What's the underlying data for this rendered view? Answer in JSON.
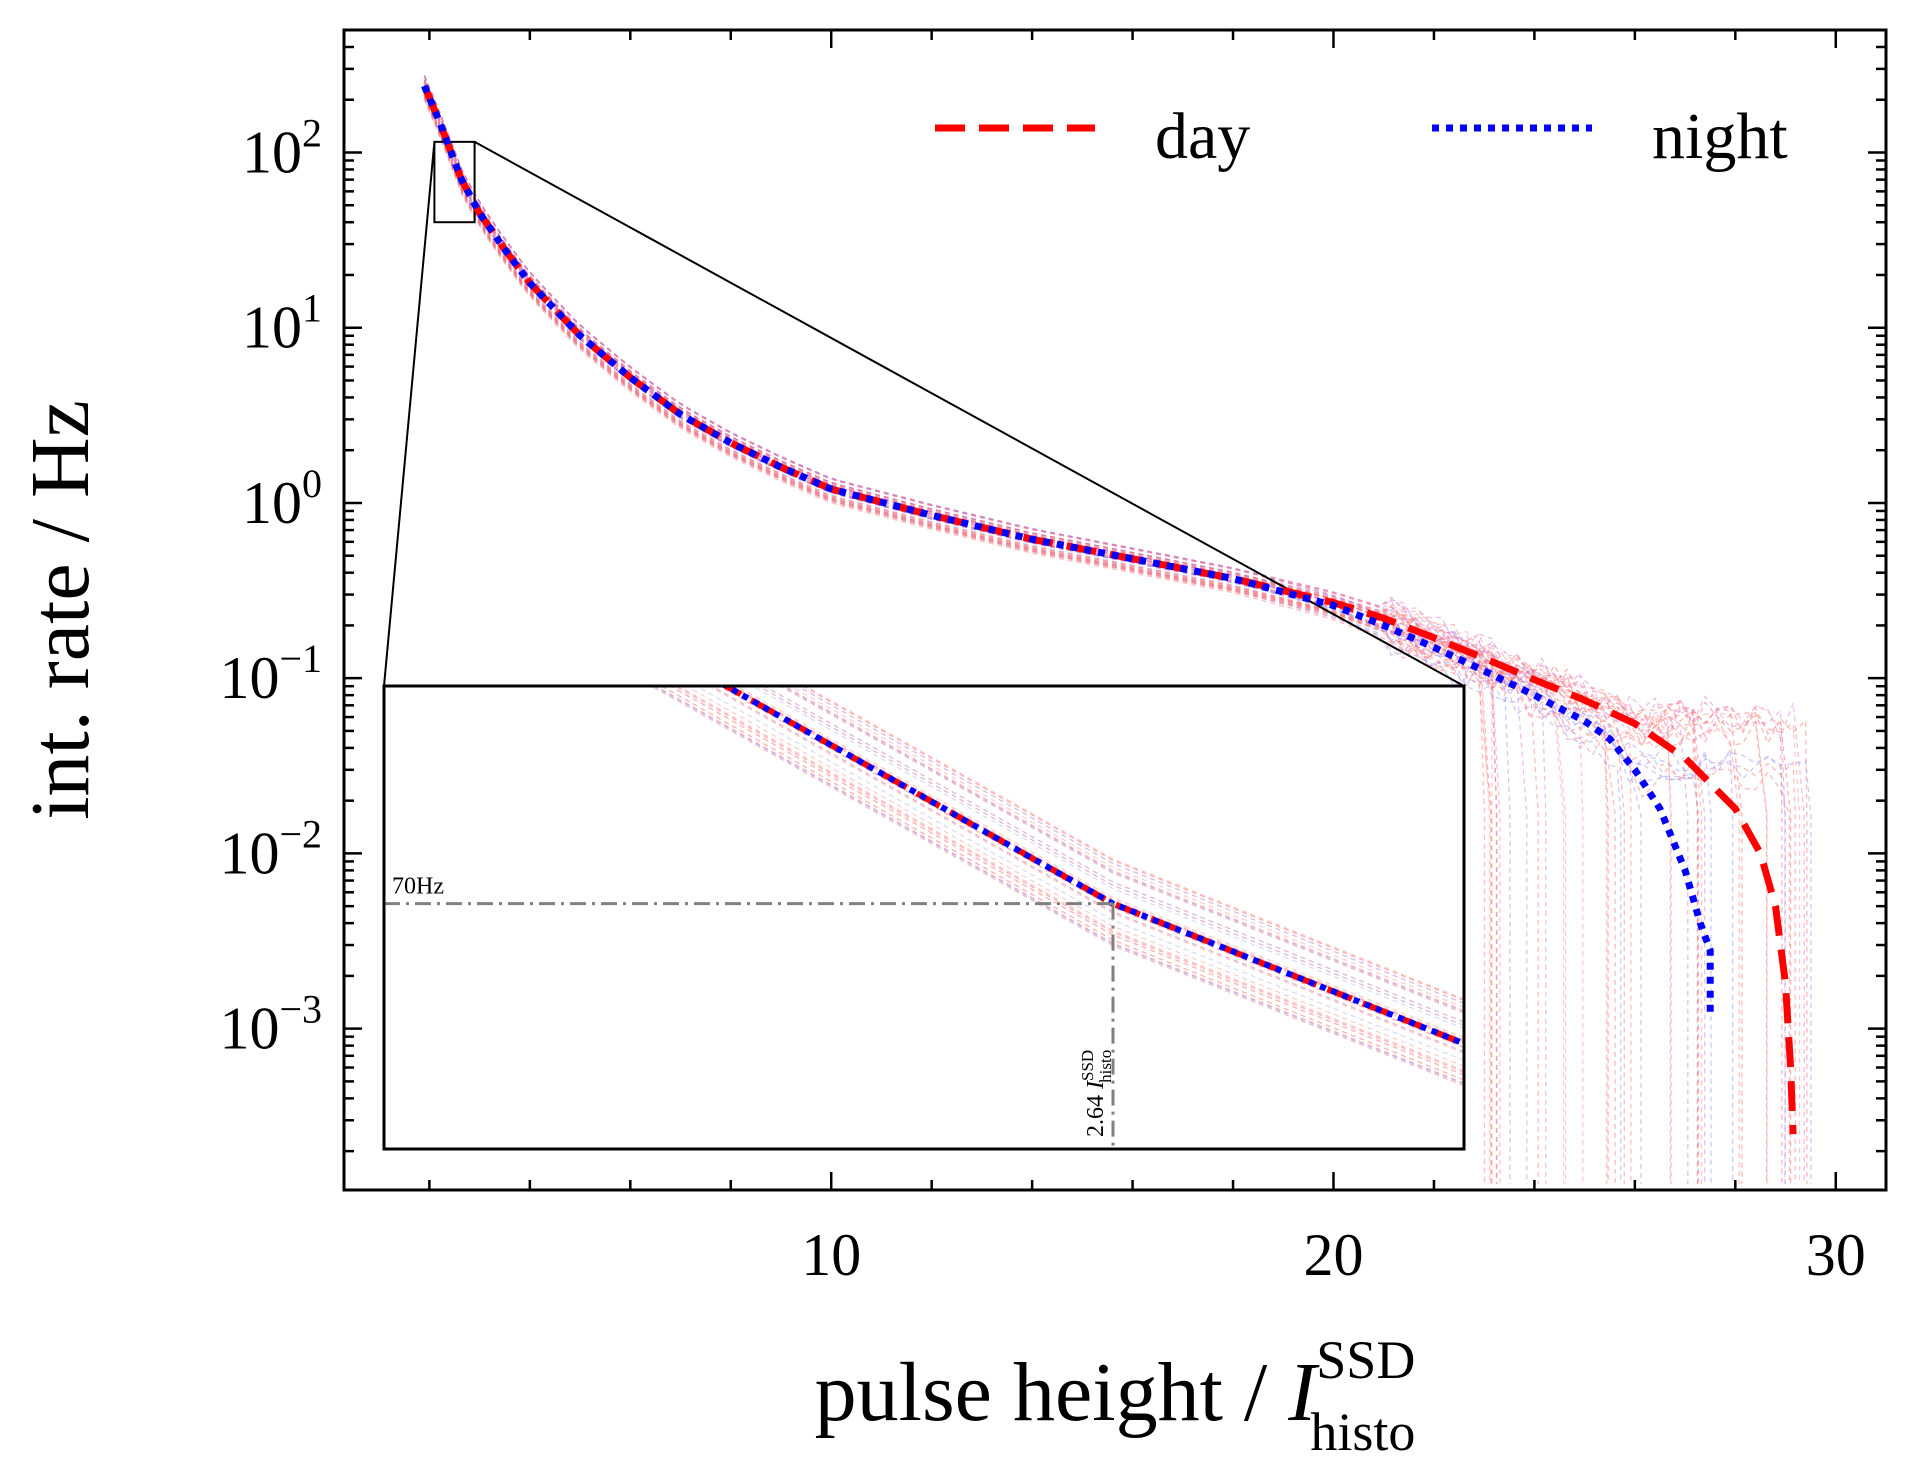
{
  "chart_data": {
    "type": "line",
    "xlabel": "pulse height / ",
    "xlabel_symbol": "I",
    "xlabel_sup": "SSD",
    "xlabel_sub": "histo",
    "ylabel": "int. rate / Hz",
    "xlim": [
      0.3,
      31.0
    ],
    "ylog": true,
    "ylim": [
      0.00012,
      500
    ],
    "x_ticks": [
      10,
      20,
      30
    ],
    "x_tick_labels": [
      "10",
      "20",
      "30"
    ],
    "y_ticks": [
      {
        "value": 100,
        "base": "10",
        "exp": "2"
      },
      {
        "value": 10,
        "base": "10",
        "exp": "1"
      },
      {
        "value": 1,
        "base": "10",
        "exp": "0"
      },
      {
        "value": 0.1,
        "base": "10",
        "exp": "−1"
      },
      {
        "value": 0.01,
        "base": "10",
        "exp": "−2"
      },
      {
        "value": 0.001,
        "base": "10",
        "exp": "−3"
      }
    ],
    "grid": false,
    "legend_position": "top-right",
    "series": [
      {
        "name": "day",
        "color": "#ff0000",
        "style": "dashed",
        "x": [
          1.9,
          2.2,
          2.64,
          3.0,
          3.5,
          4.0,
          5.0,
          6.0,
          7.0,
          8.0,
          9.0,
          10.0,
          12.0,
          14.0,
          16.0,
          18.0,
          20.0,
          21.0,
          22.0,
          23.0,
          24.0,
          25.0,
          26.0,
          27.0,
          28.0,
          28.5,
          28.8,
          29.0,
          29.1,
          29.15
        ],
        "y": [
          240,
          150,
          70,
          45,
          28,
          18,
          9,
          5.2,
          3.2,
          2.2,
          1.6,
          1.2,
          0.85,
          0.62,
          0.48,
          0.37,
          0.27,
          0.22,
          0.17,
          0.13,
          0.098,
          0.075,
          0.055,
          0.035,
          0.018,
          0.01,
          0.005,
          0.0018,
          0.0006,
          0.00025
        ]
      },
      {
        "name": "night",
        "color": "#0000ff",
        "style": "dotted",
        "x": [
          1.9,
          2.2,
          2.64,
          3.0,
          3.5,
          4.0,
          5.0,
          6.0,
          7.0,
          8.0,
          9.0,
          10.0,
          12.0,
          14.0,
          16.0,
          18.0,
          20.0,
          21.0,
          22.0,
          23.0,
          24.0,
          25.0,
          25.5,
          26.0,
          26.5,
          27.0,
          27.3,
          27.5,
          27.5
        ],
        "y": [
          240,
          150,
          70,
          45,
          28,
          18,
          9,
          5.2,
          3.2,
          2.2,
          1.6,
          1.2,
          0.85,
          0.62,
          0.48,
          0.37,
          0.26,
          0.2,
          0.15,
          0.11,
          0.08,
          0.057,
          0.045,
          0.03,
          0.018,
          0.008,
          0.004,
          0.0028,
          0.0012
        ]
      }
    ],
    "zoom_box": {
      "x": [
        2.1,
        2.9
      ],
      "y": [
        40,
        115
      ]
    },
    "inset": {
      "annotation_label": "70Hz",
      "threshold_label": "2.64 ",
      "threshold_symbol": "I",
      "threshold_sup": "SSD",
      "threshold_sub": "histo",
      "threshold_x": 2.64,
      "threshold_y": 70
    }
  }
}
